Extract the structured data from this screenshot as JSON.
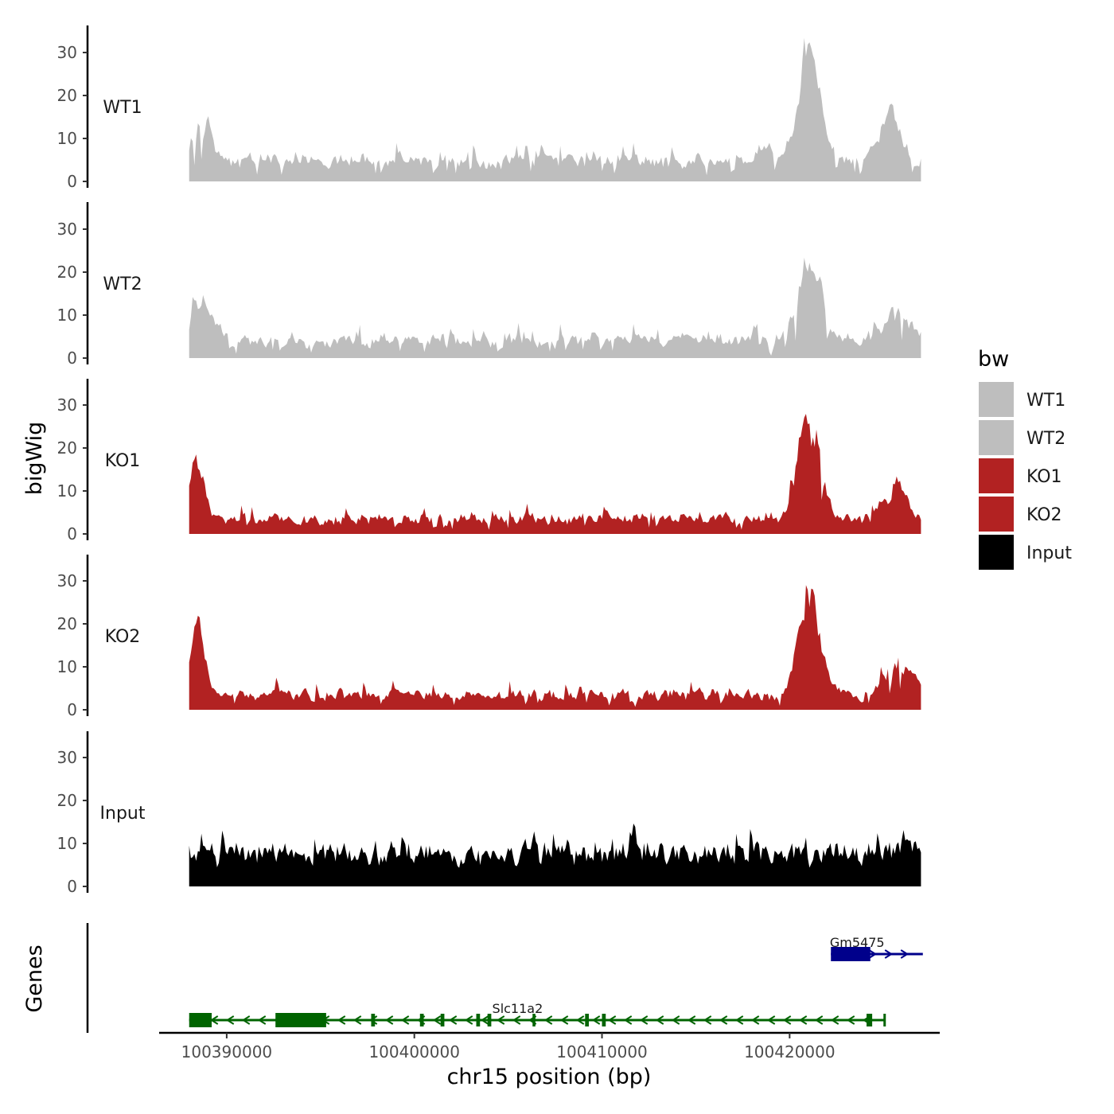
{
  "chart_data": {
    "type": "area",
    "x": {
      "label": "chr15 position (bp)",
      "range": [
        100386400,
        100428000
      ],
      "ticks": [
        100390000,
        100400000,
        100410000,
        100420000
      ],
      "tick_labels": [
        "100390000",
        "100400000",
        "100410000",
        "100420000"
      ],
      "data_range": [
        100388000,
        100427000
      ]
    },
    "y": {
      "label": "bigWig",
      "range": [
        0,
        36
      ],
      "ticks": [
        0,
        10,
        20,
        30
      ],
      "tick_labels": [
        "0",
        "10",
        "20",
        "30"
      ]
    },
    "tracks": [
      {
        "name": "WT1",
        "color": "#bebebe",
        "peaks": [
          {
            "x": 100421000,
            "h": 30,
            "w": 800
          },
          {
            "x": 100418600,
            "h": 5,
            "w": 600
          },
          {
            "x": 100425300,
            "h": 12,
            "w": 900
          },
          {
            "x": 100388500,
            "h": 10,
            "w": 900
          }
        ],
        "base": 3.5,
        "noise": 3.5,
        "seed": 11
      },
      {
        "name": "WT2",
        "color": "#bebebe",
        "peaks": [
          {
            "x": 100421000,
            "h": 24,
            "w": 800
          },
          {
            "x": 100425700,
            "h": 8,
            "w": 900
          },
          {
            "x": 100388600,
            "h": 10,
            "w": 900
          }
        ],
        "base": 3.0,
        "noise": 3.5,
        "seed": 23
      },
      {
        "name": "KO1",
        "color": "#b22222",
        "peaks": [
          {
            "x": 100421000,
            "h": 28,
            "w": 800
          },
          {
            "x": 100388300,
            "h": 15,
            "w": 600
          },
          {
            "x": 100425600,
            "h": 8,
            "w": 900
          }
        ],
        "base": 2.5,
        "noise": 3.0,
        "seed": 37
      },
      {
        "name": "KO2",
        "color": "#b22222",
        "peaks": [
          {
            "x": 100421000,
            "h": 26,
            "w": 800
          },
          {
            "x": 100388300,
            "h": 18,
            "w": 600
          },
          {
            "x": 100425800,
            "h": 9,
            "w": 900
          }
        ],
        "base": 2.5,
        "noise": 3.0,
        "seed": 41
      },
      {
        "name": "Input",
        "color": "#000000",
        "peaks": [],
        "base": 6.0,
        "noise": 5.0,
        "seed": 53
      }
    ],
    "genes": {
      "label": "Genes",
      "items": [
        {
          "name": "Slc11a2",
          "start": 100388000,
          "end": 100425100,
          "strand": "-",
          "color": "#006400",
          "exons": [
            [
              100388000,
              100389200
            ],
            [
              100392600,
              100395300
            ],
            [
              100397700,
              100397900
            ],
            [
              100400300,
              100400500
            ],
            [
              100401400,
              100401600
            ],
            [
              100403300,
              100403500
            ],
            [
              100403900,
              100404100
            ],
            [
              100406300,
              100406450
            ],
            [
              100409100,
              100409300
            ],
            [
              100410000,
              100410200
            ],
            [
              100424100,
              100424400
            ],
            [
              100425000,
              100425100
            ]
          ],
          "label_x": 100405500
        },
        {
          "name": "Gm5475",
          "start": 100422200,
          "end": 100427100,
          "strand": "+",
          "color": "#00008b",
          "exons": [
            [
              100422200,
              100424300
            ]
          ],
          "label_x": 100423600
        }
      ]
    },
    "legend": {
      "title": "bw",
      "entries": [
        {
          "label": "WT1",
          "color": "#bebebe"
        },
        {
          "label": "WT2",
          "color": "#bebebe"
        },
        {
          "label": "KO1",
          "color": "#b22222"
        },
        {
          "label": "KO2",
          "color": "#b22222"
        },
        {
          "label": "Input",
          "color": "#000000"
        }
      ],
      "position": "right"
    }
  }
}
